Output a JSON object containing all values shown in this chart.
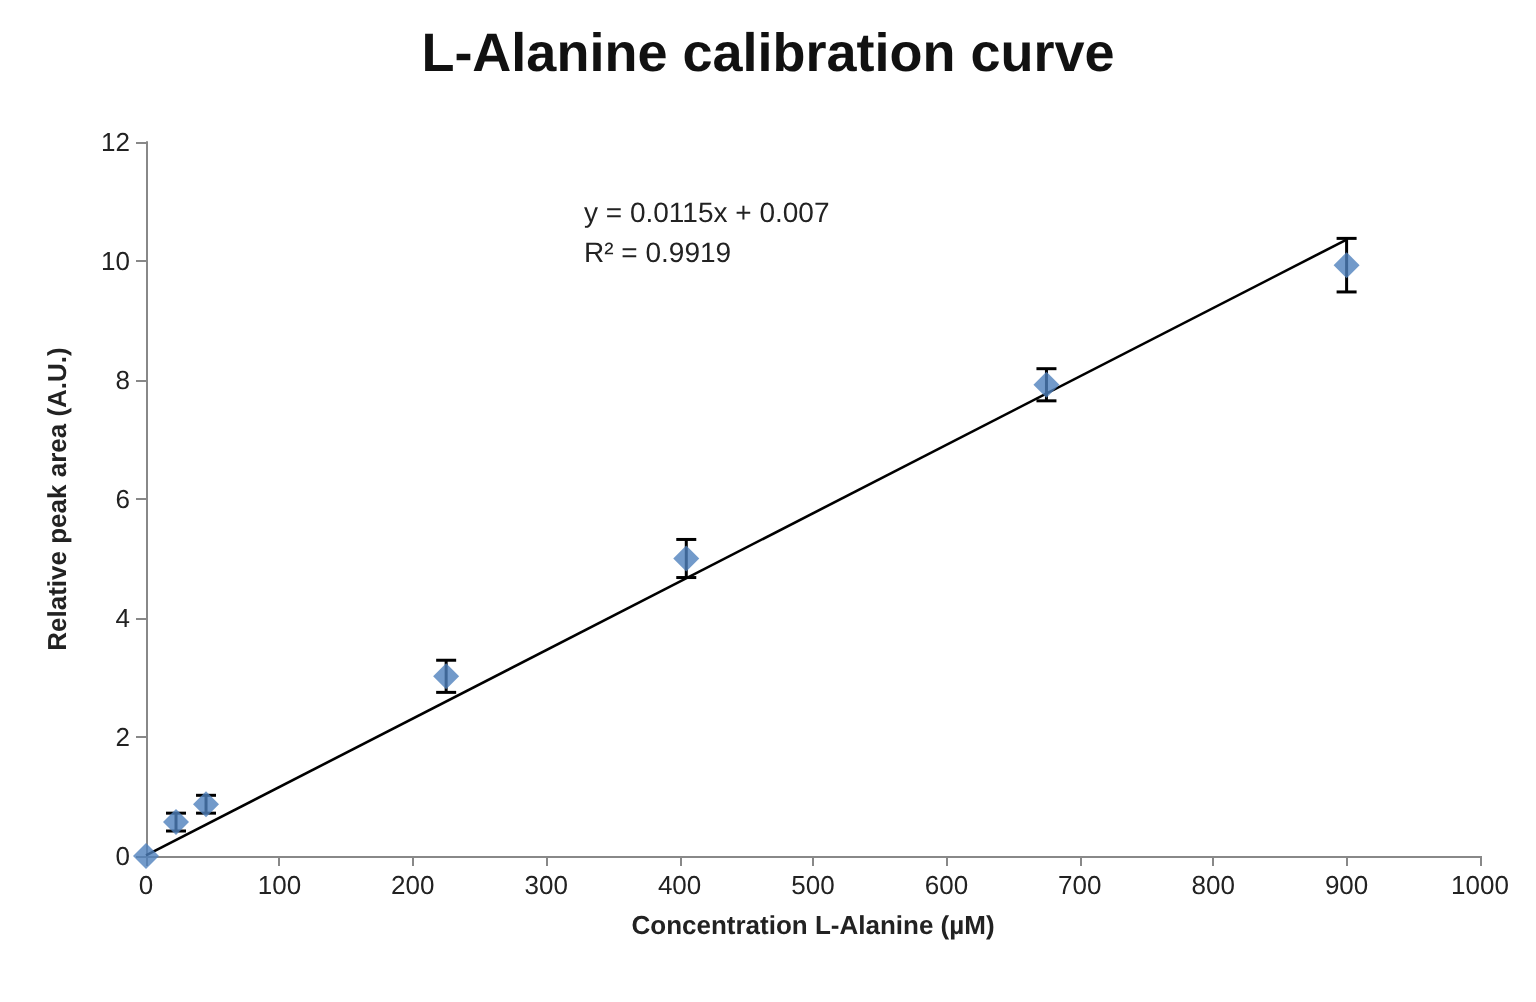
{
  "chart_data": {
    "type": "scatter",
    "title": "L-Alanine calibration curve",
    "xlabel": "Concentration L-Alanine (µM)",
    "ylabel": "Relative peak area (A.U.)",
    "xlim": [
      0,
      1000
    ],
    "xticks": [
      0,
      100,
      200,
      300,
      400,
      500,
      600,
      700,
      800,
      900,
      1000
    ],
    "ylim": [
      0,
      12
    ],
    "yticks": [
      0,
      2,
      4,
      6,
      8,
      10,
      12
    ],
    "grid": false,
    "marker": "diamond",
    "annotations": [
      "y = 0.0115x + 0.007",
      "R² = 0.9919"
    ],
    "series": [
      {
        "color": "#4f81bd",
        "x": [
          0,
          22.5,
          45,
          225,
          405,
          675,
          900
        ],
        "values": [
          0,
          0.57,
          0.87,
          3.02,
          5.0,
          7.92,
          9.93
        ],
        "errors": [
          null,
          0.15,
          0.15,
          0.27,
          0.32,
          0.27,
          0.45
        ]
      },
      {
        "type": "line",
        "color": "#000000",
        "x": [
          0,
          900
        ],
        "values": [
          0.01,
          10.36
        ],
        "marker": "none",
        "line_style": "solid"
      }
    ]
  }
}
